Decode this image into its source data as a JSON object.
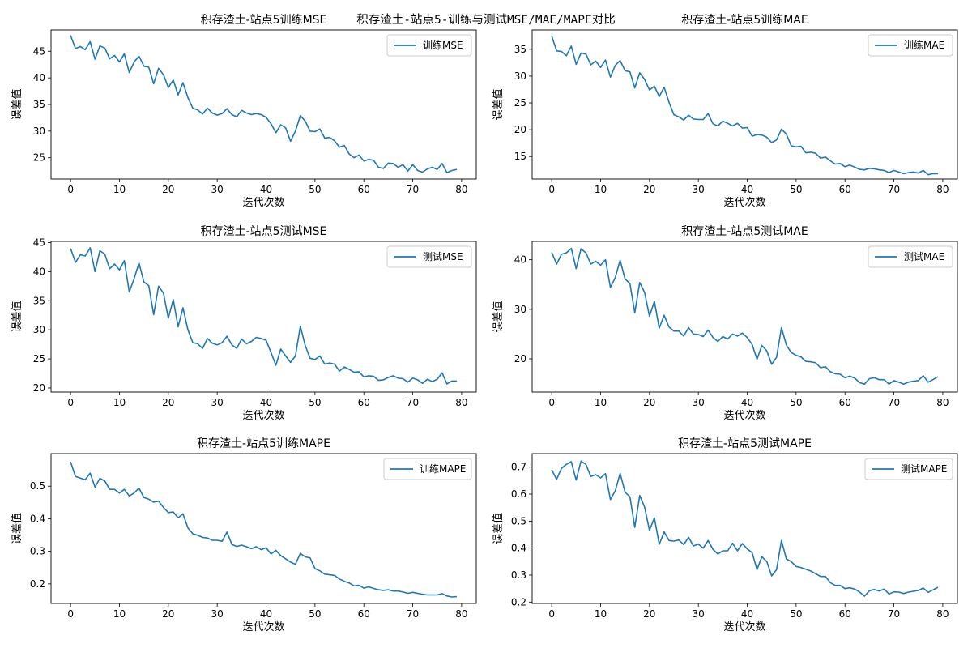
{
  "figure": {
    "suptitle": "积存渣土-站点5-训练与测试MSE/MAE/MAPE对比"
  },
  "colors": {
    "line": "#1f77b4",
    "axis": "#000000",
    "legend_border": "#cccccc"
  },
  "chart_data": [
    {
      "type": "line",
      "title": "积存渣土-站点5训练MSE",
      "xlabel": "迭代次数",
      "ylabel": "误差值",
      "xlim": [
        -4,
        83
      ],
      "ylim": [
        21,
        49
      ],
      "xticks": [
        0,
        10,
        20,
        30,
        40,
        50,
        60,
        70,
        80
      ],
      "yticks": [
        25,
        30,
        35,
        40,
        45
      ],
      "ytick_labels": [
        "25",
        "30",
        "35",
        "40",
        "45"
      ],
      "legend_position": "upper right",
      "series": [
        {
          "name": "训练MSE",
          "values": [
            48.0,
            45.5,
            45.9,
            45.3,
            46.8,
            43.5,
            46.0,
            45.6,
            43.6,
            44.2,
            43.0,
            44.5,
            41.0,
            43.0,
            44.1,
            42.2,
            42.0,
            38.9,
            41.8,
            40.6,
            38.2,
            39.6,
            36.8,
            39.1,
            36.3,
            34.3,
            34.0,
            33.2,
            34.3,
            33.4,
            33.0,
            33.3,
            34.2,
            33.1,
            32.7,
            33.9,
            33.4,
            33.1,
            33.3,
            33.1,
            32.6,
            31.4,
            29.7,
            31.2,
            30.6,
            28.1,
            30.0,
            32.9,
            31.9,
            30.0,
            29.9,
            30.4,
            28.7,
            28.8,
            28.2,
            27.0,
            27.3,
            25.7,
            25.0,
            25.5,
            24.4,
            24.7,
            24.5,
            23.2,
            23.0,
            24.0,
            23.9,
            23.2,
            23.7,
            22.5,
            23.7,
            22.6,
            22.3,
            22.9,
            23.2,
            22.8,
            23.9,
            22.2,
            22.6,
            22.8
          ]
        }
      ]
    },
    {
      "type": "line",
      "title": "积存渣土-站点5训练MAE",
      "xlabel": "迭代次数",
      "ylabel": "误差值",
      "xlim": [
        -4,
        83
      ],
      "ylim": [
        10.8,
        38.6
      ],
      "xticks": [
        0,
        10,
        20,
        30,
        40,
        50,
        60,
        70,
        80
      ],
      "yticks": [
        15,
        20,
        25,
        30,
        35
      ],
      "ytick_labels": [
        "15",
        "20",
        "25",
        "30",
        "35"
      ],
      "legend_position": "upper right",
      "series": [
        {
          "name": "训练MAE",
          "values": [
            37.5,
            34.7,
            34.6,
            33.8,
            35.6,
            32.2,
            34.3,
            34.1,
            32.1,
            32.8,
            31.6,
            33.0,
            29.8,
            32.0,
            32.9,
            31.0,
            30.8,
            27.8,
            30.6,
            29.4,
            27.4,
            28.1,
            26.2,
            27.9,
            25.1,
            22.8,
            22.4,
            21.8,
            22.7,
            22.0,
            21.9,
            21.9,
            23.0,
            21.1,
            20.7,
            21.6,
            21.2,
            20.7,
            21.2,
            20.3,
            20.4,
            18.8,
            19.1,
            19.0,
            18.6,
            17.6,
            18.1,
            20.1,
            19.2,
            17.0,
            16.8,
            16.9,
            15.7,
            15.8,
            15.6,
            14.7,
            14.9,
            14.2,
            13.6,
            13.7,
            13.1,
            13.4,
            13.0,
            12.6,
            12.5,
            12.8,
            12.7,
            12.5,
            12.4,
            12.0,
            12.4,
            12.1,
            11.8,
            12.0,
            12.1,
            11.9,
            12.4,
            11.6,
            11.8,
            11.8
          ]
        }
      ]
    },
    {
      "type": "line",
      "title": "积存渣土-站点5测试MSE",
      "xlabel": "迭代次数",
      "ylabel": "误差值",
      "xlim": [
        -4,
        83
      ],
      "ylim": [
        19.3,
        45.2
      ],
      "xticks": [
        0,
        10,
        20,
        30,
        40,
        50,
        60,
        70,
        80
      ],
      "yticks": [
        20,
        25,
        30,
        35,
        40,
        45
      ],
      "ytick_labels": [
        "20",
        "25",
        "30",
        "35",
        "40",
        "45"
      ],
      "legend_position": "upper right",
      "series": [
        {
          "name": "测试MSE",
          "values": [
            44.0,
            41.6,
            42.9,
            42.7,
            44.1,
            40.0,
            43.6,
            43.0,
            40.5,
            41.3,
            40.3,
            41.9,
            36.5,
            38.8,
            41.5,
            38.2,
            37.6,
            32.6,
            37.5,
            36.3,
            32.0,
            35.2,
            30.5,
            33.8,
            30.0,
            27.8,
            27.6,
            26.8,
            28.5,
            27.7,
            27.4,
            27.8,
            28.9,
            27.4,
            26.8,
            28.4,
            27.6,
            28.0,
            28.7,
            28.5,
            28.2,
            26.1,
            23.9,
            26.7,
            25.5,
            24.4,
            25.5,
            30.6,
            27.3,
            25.1,
            24.9,
            25.5,
            24.1,
            24.3,
            24.1,
            22.9,
            23.6,
            23.2,
            22.7,
            22.8,
            21.9,
            22.1,
            22.0,
            21.3,
            21.4,
            21.8,
            22.1,
            21.7,
            21.6,
            21.0,
            21.7,
            21.4,
            20.8,
            21.5,
            21.1,
            21.5,
            22.6,
            20.7,
            21.2,
            21.2
          ]
        }
      ]
    },
    {
      "type": "line",
      "title": "积存渣土-站点5测试MAE",
      "xlabel": "迭代次数",
      "ylabel": "误差值",
      "xlim": [
        -4,
        83
      ],
      "ylim": [
        13.3,
        43.7
      ],
      "xticks": [
        0,
        10,
        20,
        30,
        40,
        50,
        60,
        70,
        80
      ],
      "yticks": [
        20,
        30,
        40
      ],
      "ytick_labels": [
        "20",
        "30",
        "40"
      ],
      "legend_position": "upper right",
      "series": [
        {
          "name": "测试MAE",
          "values": [
            41.5,
            39.1,
            41.1,
            41.4,
            42.3,
            38.2,
            42.2,
            41.4,
            39.1,
            39.7,
            38.9,
            40.0,
            34.4,
            36.4,
            39.9,
            36.1,
            35.2,
            29.3,
            35.4,
            33.4,
            28.6,
            31.6,
            26.2,
            28.8,
            26.4,
            25.6,
            25.6,
            24.6,
            26.3,
            25.0,
            24.9,
            24.5,
            25.8,
            24.3,
            23.5,
            24.5,
            24.0,
            25.0,
            24.6,
            25.2,
            24.3,
            22.9,
            19.9,
            22.7,
            21.6,
            18.9,
            20.3,
            26.3,
            22.8,
            21.3,
            20.7,
            20.4,
            19.5,
            19.4,
            19.2,
            18.2,
            18.4,
            17.4,
            17.0,
            16.9,
            16.2,
            16.5,
            16.1,
            15.2,
            14.9,
            16.0,
            16.2,
            15.8,
            15.8,
            14.9,
            15.6,
            15.3,
            14.9,
            15.3,
            15.5,
            15.6,
            16.6,
            15.3,
            15.8,
            16.4
          ]
        }
      ]
    },
    {
      "type": "line",
      "title": "积存渣土-站点5训练MAPE",
      "xlabel": "迭代次数",
      "ylabel": "误差值",
      "xlim": [
        -4,
        83
      ],
      "ylim": [
        0.14,
        0.6
      ],
      "xticks": [
        0,
        10,
        20,
        30,
        40,
        50,
        60,
        70,
        80
      ],
      "yticks": [
        0.2,
        0.3,
        0.4,
        0.5
      ],
      "ytick_labels": [
        "0.2",
        "0.3",
        "0.4",
        "0.5"
      ],
      "legend_position": "upper right",
      "series": [
        {
          "name": "训练MAPE",
          "values": [
            0.575,
            0.53,
            0.525,
            0.52,
            0.54,
            0.497,
            0.524,
            0.516,
            0.49,
            0.49,
            0.479,
            0.49,
            0.47,
            0.479,
            0.494,
            0.465,
            0.46,
            0.451,
            0.454,
            0.435,
            0.419,
            0.421,
            0.403,
            0.415,
            0.372,
            0.354,
            0.349,
            0.343,
            0.341,
            0.334,
            0.334,
            0.331,
            0.359,
            0.321,
            0.315,
            0.319,
            0.314,
            0.308,
            0.314,
            0.305,
            0.311,
            0.292,
            0.303,
            0.287,
            0.277,
            0.267,
            0.26,
            0.294,
            0.283,
            0.28,
            0.247,
            0.24,
            0.23,
            0.228,
            0.226,
            0.215,
            0.208,
            0.203,
            0.194,
            0.196,
            0.187,
            0.191,
            0.186,
            0.182,
            0.18,
            0.182,
            0.178,
            0.178,
            0.175,
            0.171,
            0.174,
            0.171,
            0.168,
            0.166,
            0.166,
            0.166,
            0.17,
            0.163,
            0.16,
            0.161
          ]
        }
      ]
    },
    {
      "type": "line",
      "title": "积存渣土-站点5测试MAPE",
      "xlabel": "迭代次数",
      "ylabel": "误差值",
      "xlim": [
        -4,
        83
      ],
      "ylim": [
        0.195,
        0.75
      ],
      "xticks": [
        0,
        10,
        20,
        30,
        40,
        50,
        60,
        70,
        80
      ],
      "yticks": [
        0.2,
        0.3,
        0.4,
        0.5,
        0.6,
        0.7
      ],
      "ytick_labels": [
        "0.2",
        "0.3",
        "0.4",
        "0.5",
        "0.6",
        "0.7"
      ],
      "legend_position": "upper right",
      "series": [
        {
          "name": "测试MAPE",
          "values": [
            0.69,
            0.655,
            0.695,
            0.71,
            0.72,
            0.652,
            0.722,
            0.71,
            0.665,
            0.672,
            0.66,
            0.676,
            0.58,
            0.612,
            0.677,
            0.607,
            0.59,
            0.477,
            0.595,
            0.552,
            0.466,
            0.512,
            0.414,
            0.46,
            0.428,
            0.426,
            0.43,
            0.413,
            0.44,
            0.408,
            0.415,
            0.4,
            0.428,
            0.395,
            0.378,
            0.39,
            0.39,
            0.418,
            0.39,
            0.417,
            0.397,
            0.383,
            0.32,
            0.368,
            0.35,
            0.297,
            0.32,
            0.428,
            0.36,
            0.35,
            0.332,
            0.328,
            0.322,
            0.315,
            0.305,
            0.295,
            0.295,
            0.272,
            0.262,
            0.262,
            0.25,
            0.253,
            0.248,
            0.237,
            0.222,
            0.242,
            0.247,
            0.241,
            0.248,
            0.23,
            0.238,
            0.237,
            0.232,
            0.237,
            0.24,
            0.243,
            0.252,
            0.236,
            0.245,
            0.255
          ]
        }
      ]
    }
  ]
}
